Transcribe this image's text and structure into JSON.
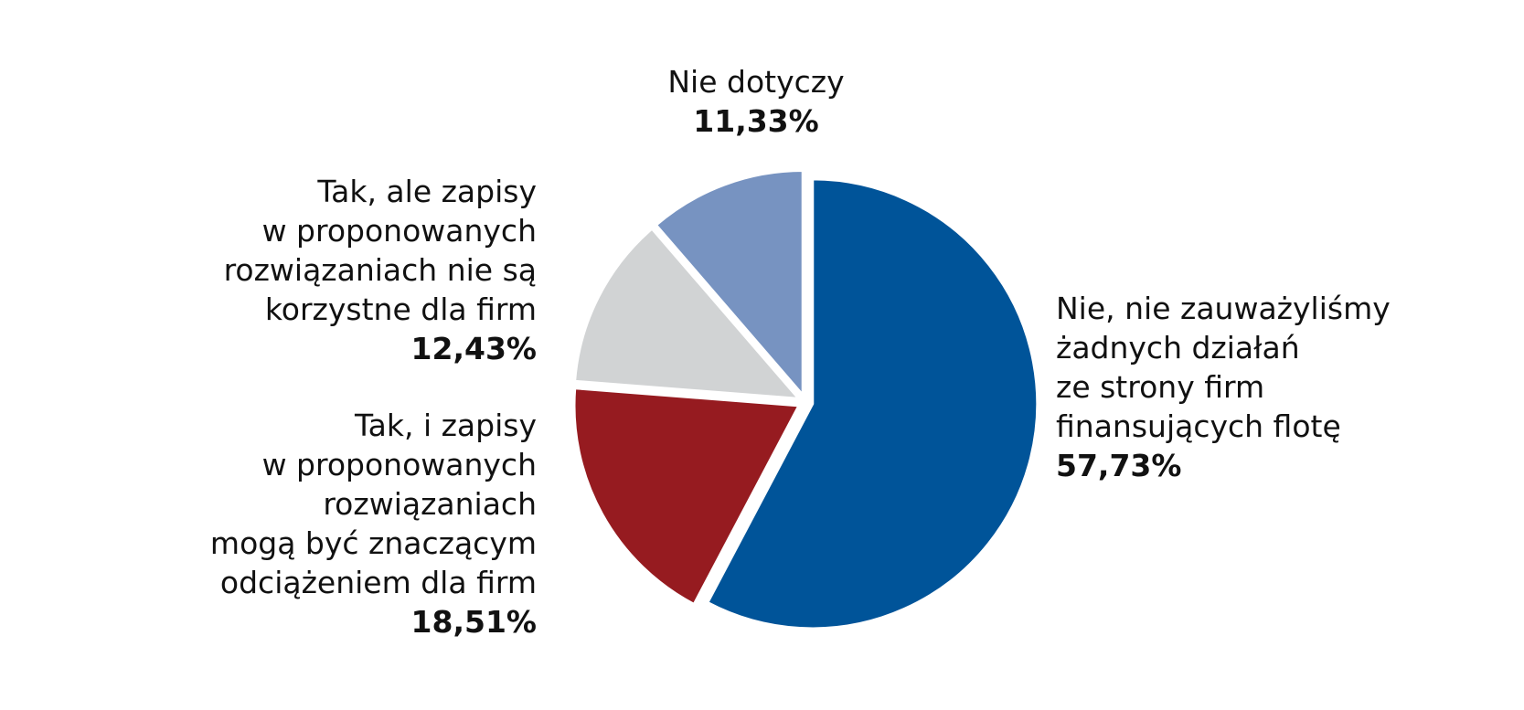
{
  "chart_data": {
    "type": "pie",
    "slices": [
      {
        "id": "nie",
        "label_lines": [
          "Nie, nie zauważyliśmy",
          "żadnych działań",
          "ze strony firm",
          "finansujących flotę"
        ],
        "value": 57.73,
        "value_label": "57,73%",
        "color": "#005499"
      },
      {
        "id": "tak-obciazenie",
        "label_lines": [
          "Tak, i zapisy",
          "w proponowanych",
          "rozwiązaniach",
          "mogą być znaczącym",
          "odciążeniem dla firm"
        ],
        "value": 18.51,
        "value_label": "18,51%",
        "color": "#961b20"
      },
      {
        "id": "tak-niekorzystne",
        "label_lines": [
          "Tak, ale zapisy",
          "w proponowanych",
          "rozwiązaniach nie są",
          "korzystne dla firm"
        ],
        "value": 12.43,
        "value_label": "12,43%",
        "color": "#d1d3d4"
      },
      {
        "id": "nie-dotyczy",
        "label_lines": [
          "Nie dotyczy"
        ],
        "value": 11.33,
        "value_label": "11,33%",
        "color": "#7793c1"
      }
    ]
  }
}
